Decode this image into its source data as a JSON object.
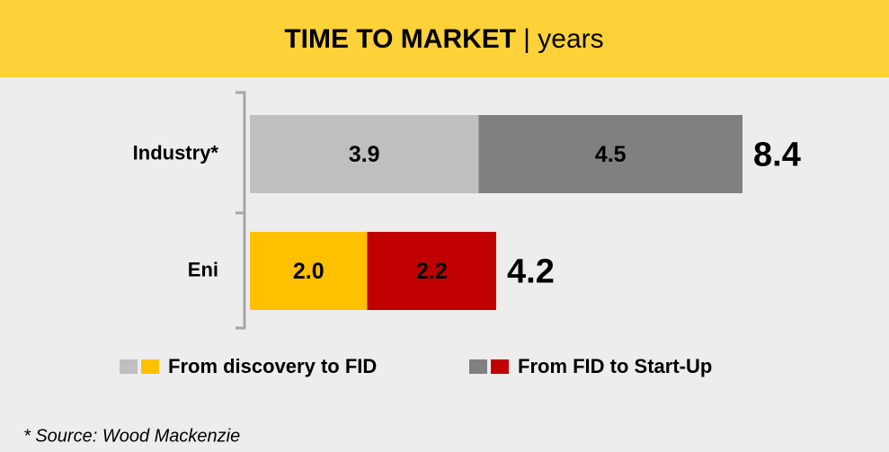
{
  "chart_data": {
    "type": "stacked_bar_horizontal",
    "title": "TIME TO MARKET",
    "title_unit": "| years",
    "categories": [
      "Industry*",
      "Eni"
    ],
    "series": [
      {
        "name": "From discovery to FID",
        "colors": [
          "#bfbfbf",
          "#ffc000"
        ],
        "values": [
          3.9,
          2.0
        ],
        "value_labels": [
          "3.9",
          "2.0"
        ]
      },
      {
        "name": "From FID to Start-Up",
        "colors": [
          "#808080",
          "#c00000"
        ],
        "values": [
          4.5,
          2.2
        ],
        "value_labels": [
          "4.5",
          "2.2"
        ]
      }
    ],
    "totals": [
      8.4,
      4.2
    ],
    "xlim": [
      0,
      8.4
    ],
    "footnote": "* Source: Wood Mackenzie"
  }
}
